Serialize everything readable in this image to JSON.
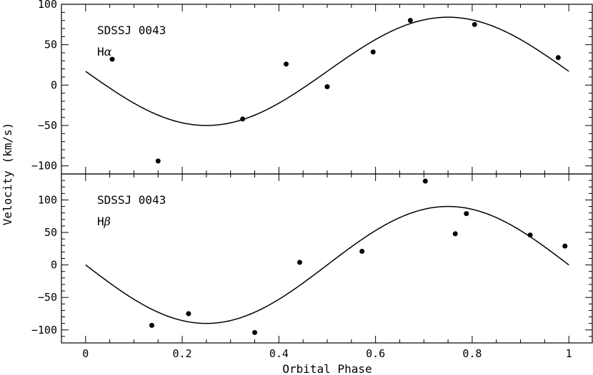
{
  "chart_data": [
    {
      "type": "scatter",
      "panel": "top",
      "object_label": "SDSSJ 0043",
      "line_prefix": "H",
      "line_greek": "α",
      "xlim": [
        -0.05,
        1.05
      ],
      "ylim": [
        -110,
        100
      ],
      "x_ticks": [
        0,
        0.2,
        0.4,
        0.6,
        0.8,
        1
      ],
      "x_tick_labels": [
        "",
        "",
        "",
        "",
        "",
        ""
      ],
      "y_ticks": [
        -100,
        -50,
        0,
        50,
        100
      ],
      "y_tick_labels": [
        "−100",
        "−50",
        "0",
        "50",
        "100"
      ],
      "points": {
        "x": [
          0.055,
          0.15,
          0.325,
          0.415,
          0.5,
          0.595,
          0.672,
          0.805,
          0.978
        ],
        "y": [
          32,
          -94,
          -42,
          26,
          -2,
          41,
          80,
          75,
          34
        ]
      },
      "fit": {
        "gamma": 17,
        "K": 67,
        "phase0": 0.0
      }
    },
    {
      "type": "scatter",
      "panel": "bottom",
      "object_label": "SDSSJ 0043",
      "line_prefix": "H",
      "line_greek": "β",
      "xlim": [
        -0.05,
        1.05
      ],
      "ylim": [
        -120,
        140
      ],
      "x_ticks": [
        0,
        0.2,
        0.4,
        0.6,
        0.8,
        1
      ],
      "x_tick_labels": [
        "0",
        "0.2",
        "0.4",
        "0.6",
        "0.8",
        "1"
      ],
      "y_ticks": [
        -100,
        -50,
        0,
        50,
        100
      ],
      "y_tick_labels": [
        "−100",
        "−50",
        "0",
        "50",
        "100"
      ],
      "points": {
        "x": [
          0.137,
          0.213,
          0.35,
          0.443,
          0.572,
          0.703,
          0.765,
          0.788,
          0.92,
          0.992
        ],
        "y": [
          -93,
          -75,
          -104,
          4,
          21,
          129,
          48,
          79,
          46,
          29
        ]
      },
      "fit": {
        "gamma": 0,
        "K": 90,
        "phase0": 0.0
      }
    }
  ],
  "xlabel": "Orbital Phase",
  "ylabel": "Velocity (km/s)"
}
